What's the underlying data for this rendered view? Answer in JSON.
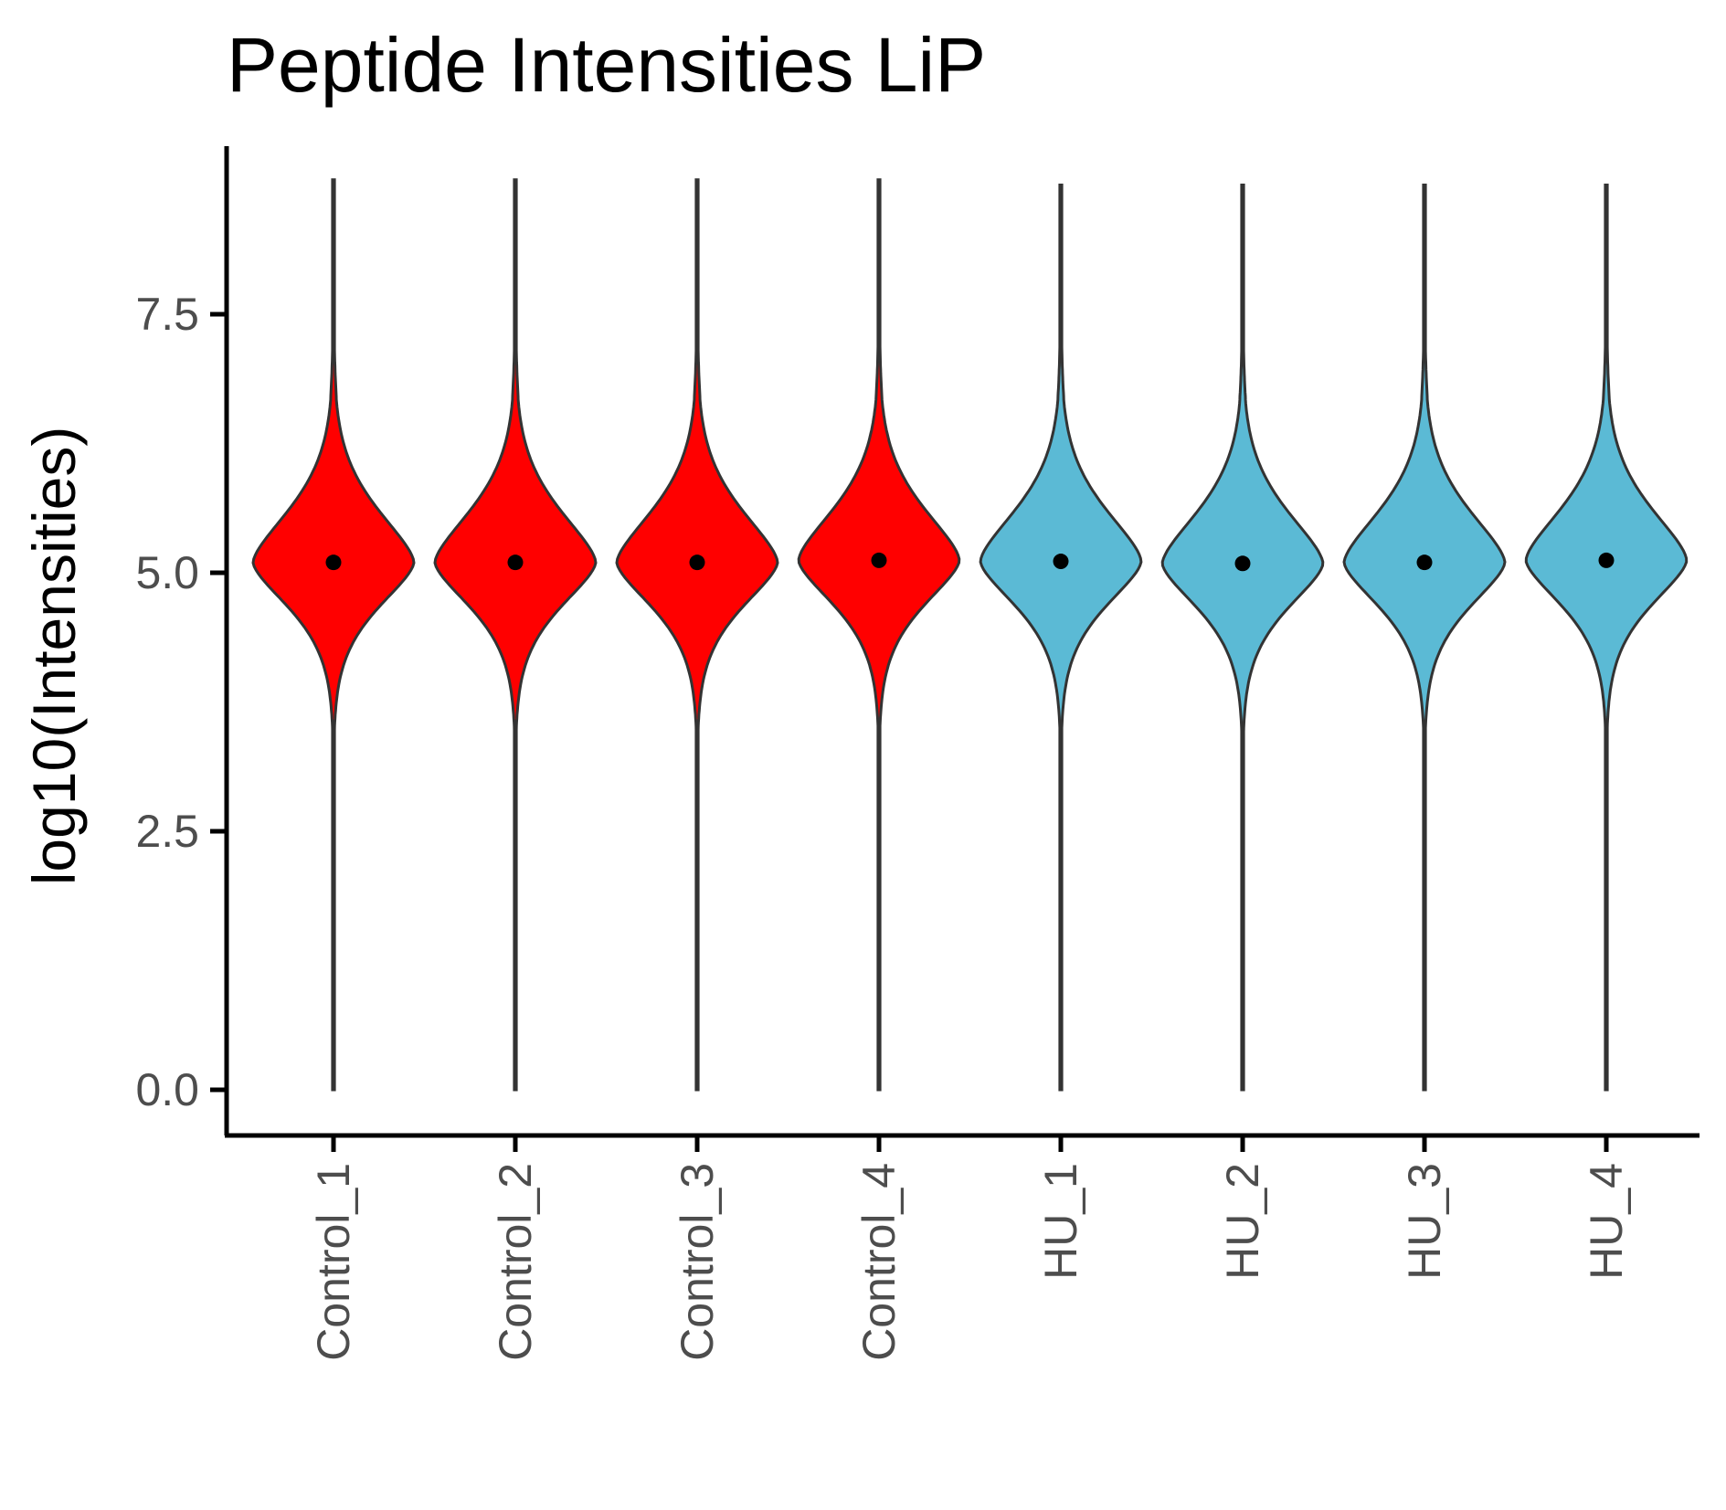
{
  "chart_data": {
    "type": "violin",
    "title": "Peptide Intensities LiP",
    "xlabel": "",
    "ylabel": "log10(Intensities)",
    "ylim": [
      -0.45,
      9.3
    ],
    "yticks": [
      "0.0",
      "2.5",
      "5.0",
      "7.5"
    ],
    "grid": false,
    "legend": "none",
    "categories": [
      "Control_1",
      "Control_2",
      "Control_3",
      "Control_4",
      "HU_1",
      "HU_2",
      "HU_3",
      "HU_4"
    ],
    "groups": [
      "Control",
      "Control",
      "Control",
      "Control",
      "HU",
      "HU",
      "HU",
      "HU"
    ],
    "colors": {
      "Control": "#ff0000",
      "HU": "#5bbad5",
      "outline": "#333333",
      "point": "#000000"
    },
    "series": [
      {
        "values_range": [
          0.0,
          8.8
        ],
        "mean": 5.1
      },
      {
        "values_range": [
          0.0,
          8.8
        ],
        "mean": 5.1
      },
      {
        "values_range": [
          0.0,
          8.8
        ],
        "mean": 5.1
      },
      {
        "values_range": [
          0.0,
          8.8
        ],
        "mean": 5.12
      },
      {
        "values_range": [
          0.0,
          8.75
        ],
        "mean": 5.11
      },
      {
        "values_range": [
          0.0,
          8.75
        ],
        "mean": 5.09
      },
      {
        "values_range": [
          0.0,
          8.75
        ],
        "mean": 5.1
      },
      {
        "values_range": [
          0.0,
          8.75
        ],
        "mean": 5.12
      }
    ]
  }
}
